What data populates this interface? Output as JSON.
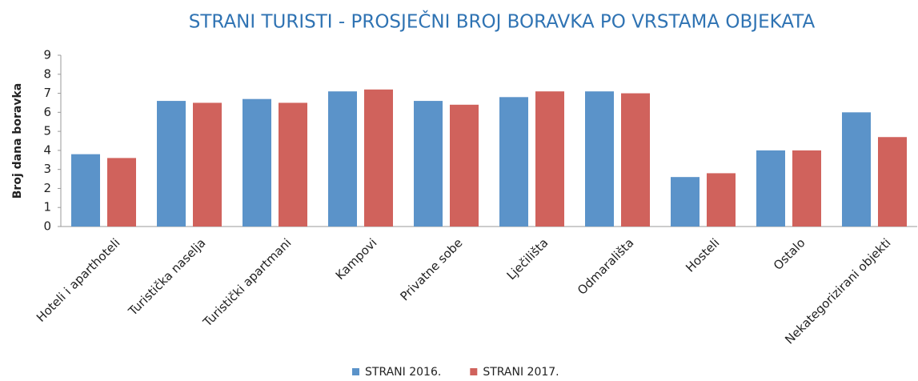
{
  "chart_data": {
    "type": "bar",
    "title": "STRANI TURISTI - PROSJEČNI BROJ BORAVKA PO VRSTAMA OBJEKATA",
    "y_label": "Broj dana boravka",
    "categories": [
      "Hoteli i aparthoteli",
      "Turistička naselja",
      "Turistički apartmani",
      "Kampovi",
      "Privatne sobe",
      "Lječilišta",
      "Odmarališta",
      "Hosteli",
      "Ostalo",
      "Nekategorizirani objekti"
    ],
    "series": [
      {
        "name": "STRANI 2016.",
        "color": "#5b93c9",
        "values": [
          3.8,
          6.6,
          6.7,
          7.1,
          6.6,
          6.8,
          7.1,
          2.6,
          4.0,
          6.0
        ]
      },
      {
        "name": "STRANI 2017.",
        "color": "#d0625c",
        "values": [
          3.6,
          6.5,
          6.5,
          7.2,
          6.4,
          7.1,
          7.0,
          2.8,
          4.0,
          4.7
        ]
      }
    ],
    "ylim": [
      0,
      9
    ],
    "yticks": [
      0,
      1,
      2,
      3,
      4,
      5,
      6,
      7,
      8,
      9
    ],
    "grid": false,
    "legend": "bottom"
  }
}
